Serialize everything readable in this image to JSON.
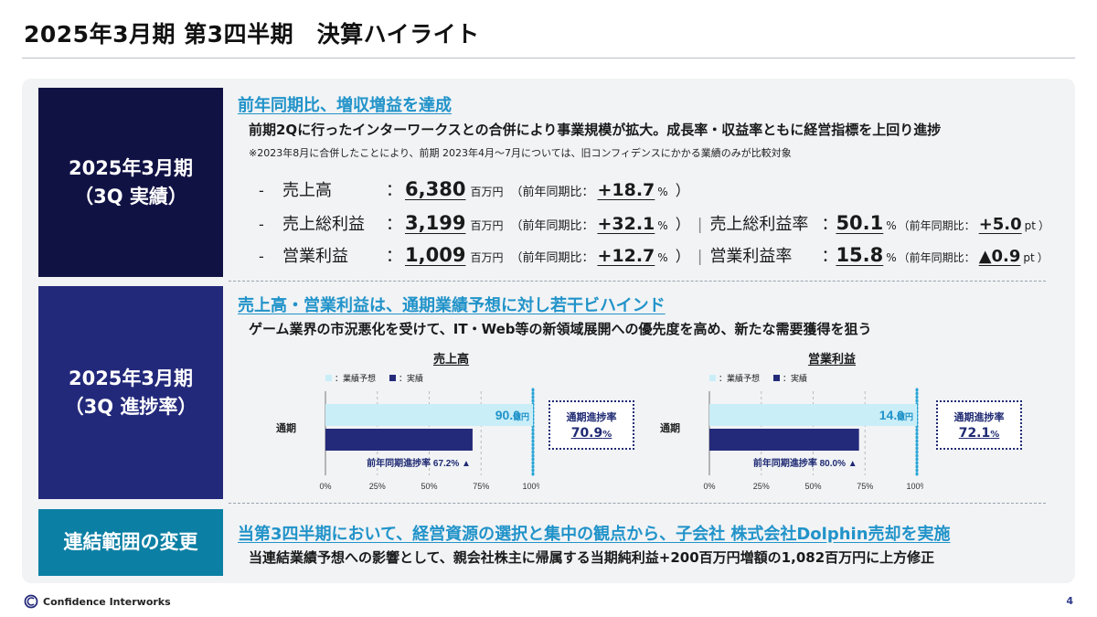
{
  "page": {
    "title": "2025年3月期 第3四半期　決算ハイライト",
    "page_number": "4"
  },
  "footer": {
    "company": "Confidence Interworks"
  },
  "section1": {
    "label_line1": "2025年3月期",
    "label_line2": "（3Q 実績）",
    "heading": "前年同期比、増収増益を達成",
    "description": "前期2Qに行ったインターワークスとの合併により事業規模が拡大。成長率・収益率ともに経営指標を上回り進捗",
    "note": "※2023年8月に合併したことにより、前期 2023年4月～7月については、旧コンフィデンスにかかる業績のみが比較対象",
    "rows": [
      {
        "dash": "-",
        "name": "売上高",
        "colon": "：",
        "value": "6,380",
        "unit": "百万円",
        "paren_open": "（前年同期比：",
        "yoy": "+18.7",
        "yoy_unit": "%",
        "paren_close": "）"
      },
      {
        "dash": "-",
        "name": "売上総利益",
        "colon": "：",
        "value": "3,199",
        "unit": "百万円",
        "paren_open": "（前年同期比：",
        "yoy": "+32.1",
        "yoy_unit": "%",
        "paren_close": "）",
        "sep": "|",
        "rate_name": "売上総利益率",
        "rate_colon": "：",
        "rate_value": "50.1",
        "rate_unit": "%",
        "rate_paren_open": "（前年同期比：",
        "rate_yoy": "+5.0",
        "rate_yoy_unit": "pt",
        "rate_paren_close": "）"
      },
      {
        "dash": "-",
        "name": "営業利益",
        "colon": "：",
        "value": "1,009",
        "unit": "百万円",
        "paren_open": "（前年同期比：",
        "yoy": "+12.7",
        "yoy_unit": "%",
        "paren_close": "）",
        "sep": "|",
        "rate_name": "営業利益率",
        "rate_colon": "：",
        "rate_value": "15.8",
        "rate_unit": "%",
        "rate_paren_open": "（前年同期比：",
        "rate_yoy": "▲0.9",
        "rate_yoy_unit": "pt",
        "rate_paren_close": "）"
      }
    ]
  },
  "section2": {
    "label_line1": "2025年3月期",
    "label_line2": "（3Q 進捗率）",
    "heading": "売上高・営業利益は、通期業績予想に対し若干ビハインド",
    "description": "ゲーム業界の市況悪化を受けて、IT・Web等の新領域展開への優先度を高め、新たな需要獲得を狙う"
  },
  "section3": {
    "label": "連結範囲の変更",
    "heading": "当第3四半期において、経営資源の選択と集中の観点から、子会社 株式会社Dolphin売却を実施",
    "description": "当連結業績予想への影響として、親会社株主に帰属する当期純利益+200百万円増額の1,082百万円に上方修正"
  },
  "colors": {
    "navy": "#111244",
    "indigo": "#23297a",
    "teal": "#0c7fa4",
    "heading_blue": "#2193c9",
    "forecast_bar": "#c9eef8",
    "actual_bar": "#232a7a",
    "dotted_line": "#2aa6d6"
  },
  "chart_data": [
    {
      "type": "bar",
      "orientation": "horizontal",
      "title": "売上高",
      "legend": [
        "：業績予想",
        "：実績"
      ],
      "categories": [
        "通期"
      ],
      "series": [
        {
          "name": "：業績予想",
          "values": [
            100
          ]
        },
        {
          "name": "：実績",
          "values": [
            70.9
          ]
        }
      ],
      "forecast_label": "90.0",
      "forecast_unit": "億円",
      "prior_year_label": "前年同期進捗率 67.2% ▲",
      "xticks": [
        "0%",
        "25%",
        "50%",
        "75%",
        "100%"
      ],
      "xlim": [
        0,
        100
      ],
      "progress_label": "通期進捗率",
      "progress_value": "70.9",
      "progress_unit": "%"
    },
    {
      "type": "bar",
      "orientation": "horizontal",
      "title": "営業利益",
      "legend": [
        "：業績予想",
        "：実績"
      ],
      "categories": [
        "通期"
      ],
      "series": [
        {
          "name": "：業績予想",
          "values": [
            100
          ]
        },
        {
          "name": "：実績",
          "values": [
            72.1
          ]
        }
      ],
      "forecast_label": "14.0",
      "forecast_unit": "億円",
      "prior_year_label": "前年同期進捗率 80.0% ▲",
      "xticks": [
        "0%",
        "25%",
        "50%",
        "75%",
        "100%"
      ],
      "xlim": [
        0,
        100
      ],
      "progress_label": "通期進捗率",
      "progress_value": "72.1",
      "progress_unit": "%"
    }
  ]
}
